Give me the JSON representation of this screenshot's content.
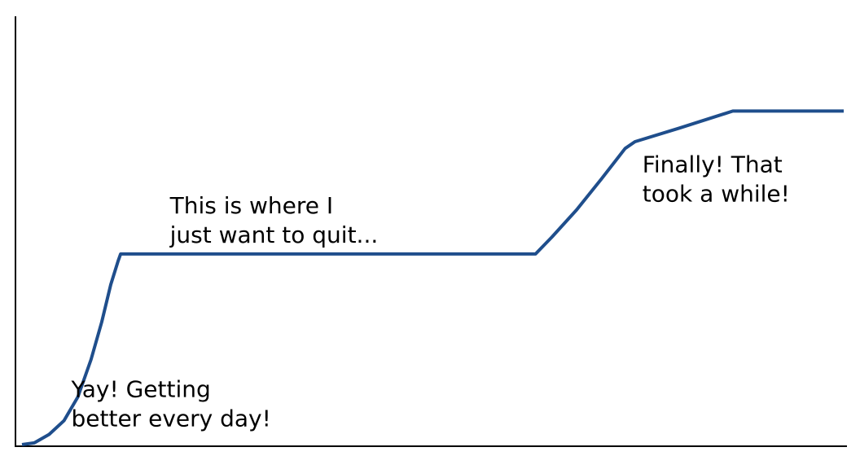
{
  "chart_data": {
    "type": "line",
    "title": "",
    "xlabel": "",
    "ylabel": "",
    "xlim": [
      0,
      100
    ],
    "ylim": [
      0,
      100
    ],
    "grid": false,
    "series": [
      {
        "color": "#1f4e8c",
        "points": [
          {
            "x": 0,
            "y": 0
          },
          {
            "x": 1.5,
            "y": 0.5
          },
          {
            "x": 3.3,
            "y": 3
          },
          {
            "x": 5.1,
            "y": 7
          },
          {
            "x": 6.8,
            "y": 14
          },
          {
            "x": 8.4,
            "y": 25
          },
          {
            "x": 9.7,
            "y": 36
          },
          {
            "x": 10.8,
            "y": 47
          },
          {
            "x": 11.7,
            "y": 54
          },
          {
            "x": 12.0,
            "y": 56
          },
          {
            "x": 30.0,
            "y": 56
          },
          {
            "x": 50.0,
            "y": 56
          },
          {
            "x": 62.5,
            "y": 56
          },
          {
            "x": 64.5,
            "y": 61
          },
          {
            "x": 67.5,
            "y": 69
          },
          {
            "x": 70.5,
            "y": 78
          },
          {
            "x": 73.4,
            "y": 87
          },
          {
            "x": 74.6,
            "y": 89
          },
          {
            "x": 80.0,
            "y": 93
          },
          {
            "x": 86.5,
            "y": 98
          },
          {
            "x": 92.0,
            "y": 98
          },
          {
            "x": 100.0,
            "y": 98
          }
        ]
      }
    ],
    "annotations": [
      {
        "lines": [
          "Yay!  Getting",
          "better every day!"
        ],
        "x": 6.0,
        "y": 14.0
      },
      {
        "lines": [
          "This is where I",
          "just want to quit..."
        ],
        "x": 18.0,
        "y": 68.0
      },
      {
        "lines": [
          "Finally!  That",
          "took a while!"
        ],
        "x": 75.5,
        "y": 80.0
      }
    ]
  }
}
